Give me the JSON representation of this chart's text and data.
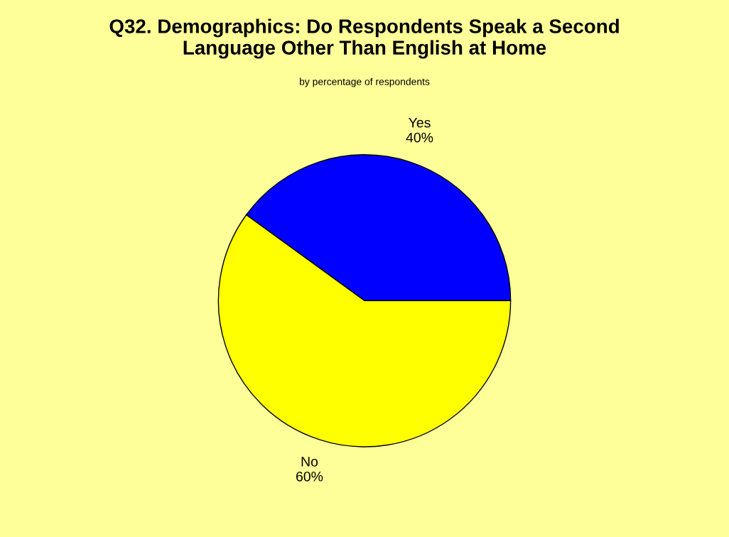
{
  "chart_data": {
    "type": "pie",
    "title": "Q32. Demographics: Do Respondents Speak a Second\nLanguage Other Than English at Home",
    "subtitle": "by percentage of respondents",
    "categories": [
      "Yes",
      "No"
    ],
    "values": [
      40,
      60
    ],
    "colors": [
      "#0000ff",
      "#ffff00"
    ],
    "value_labels": [
      "40%",
      "60%"
    ],
    "legend": false
  }
}
